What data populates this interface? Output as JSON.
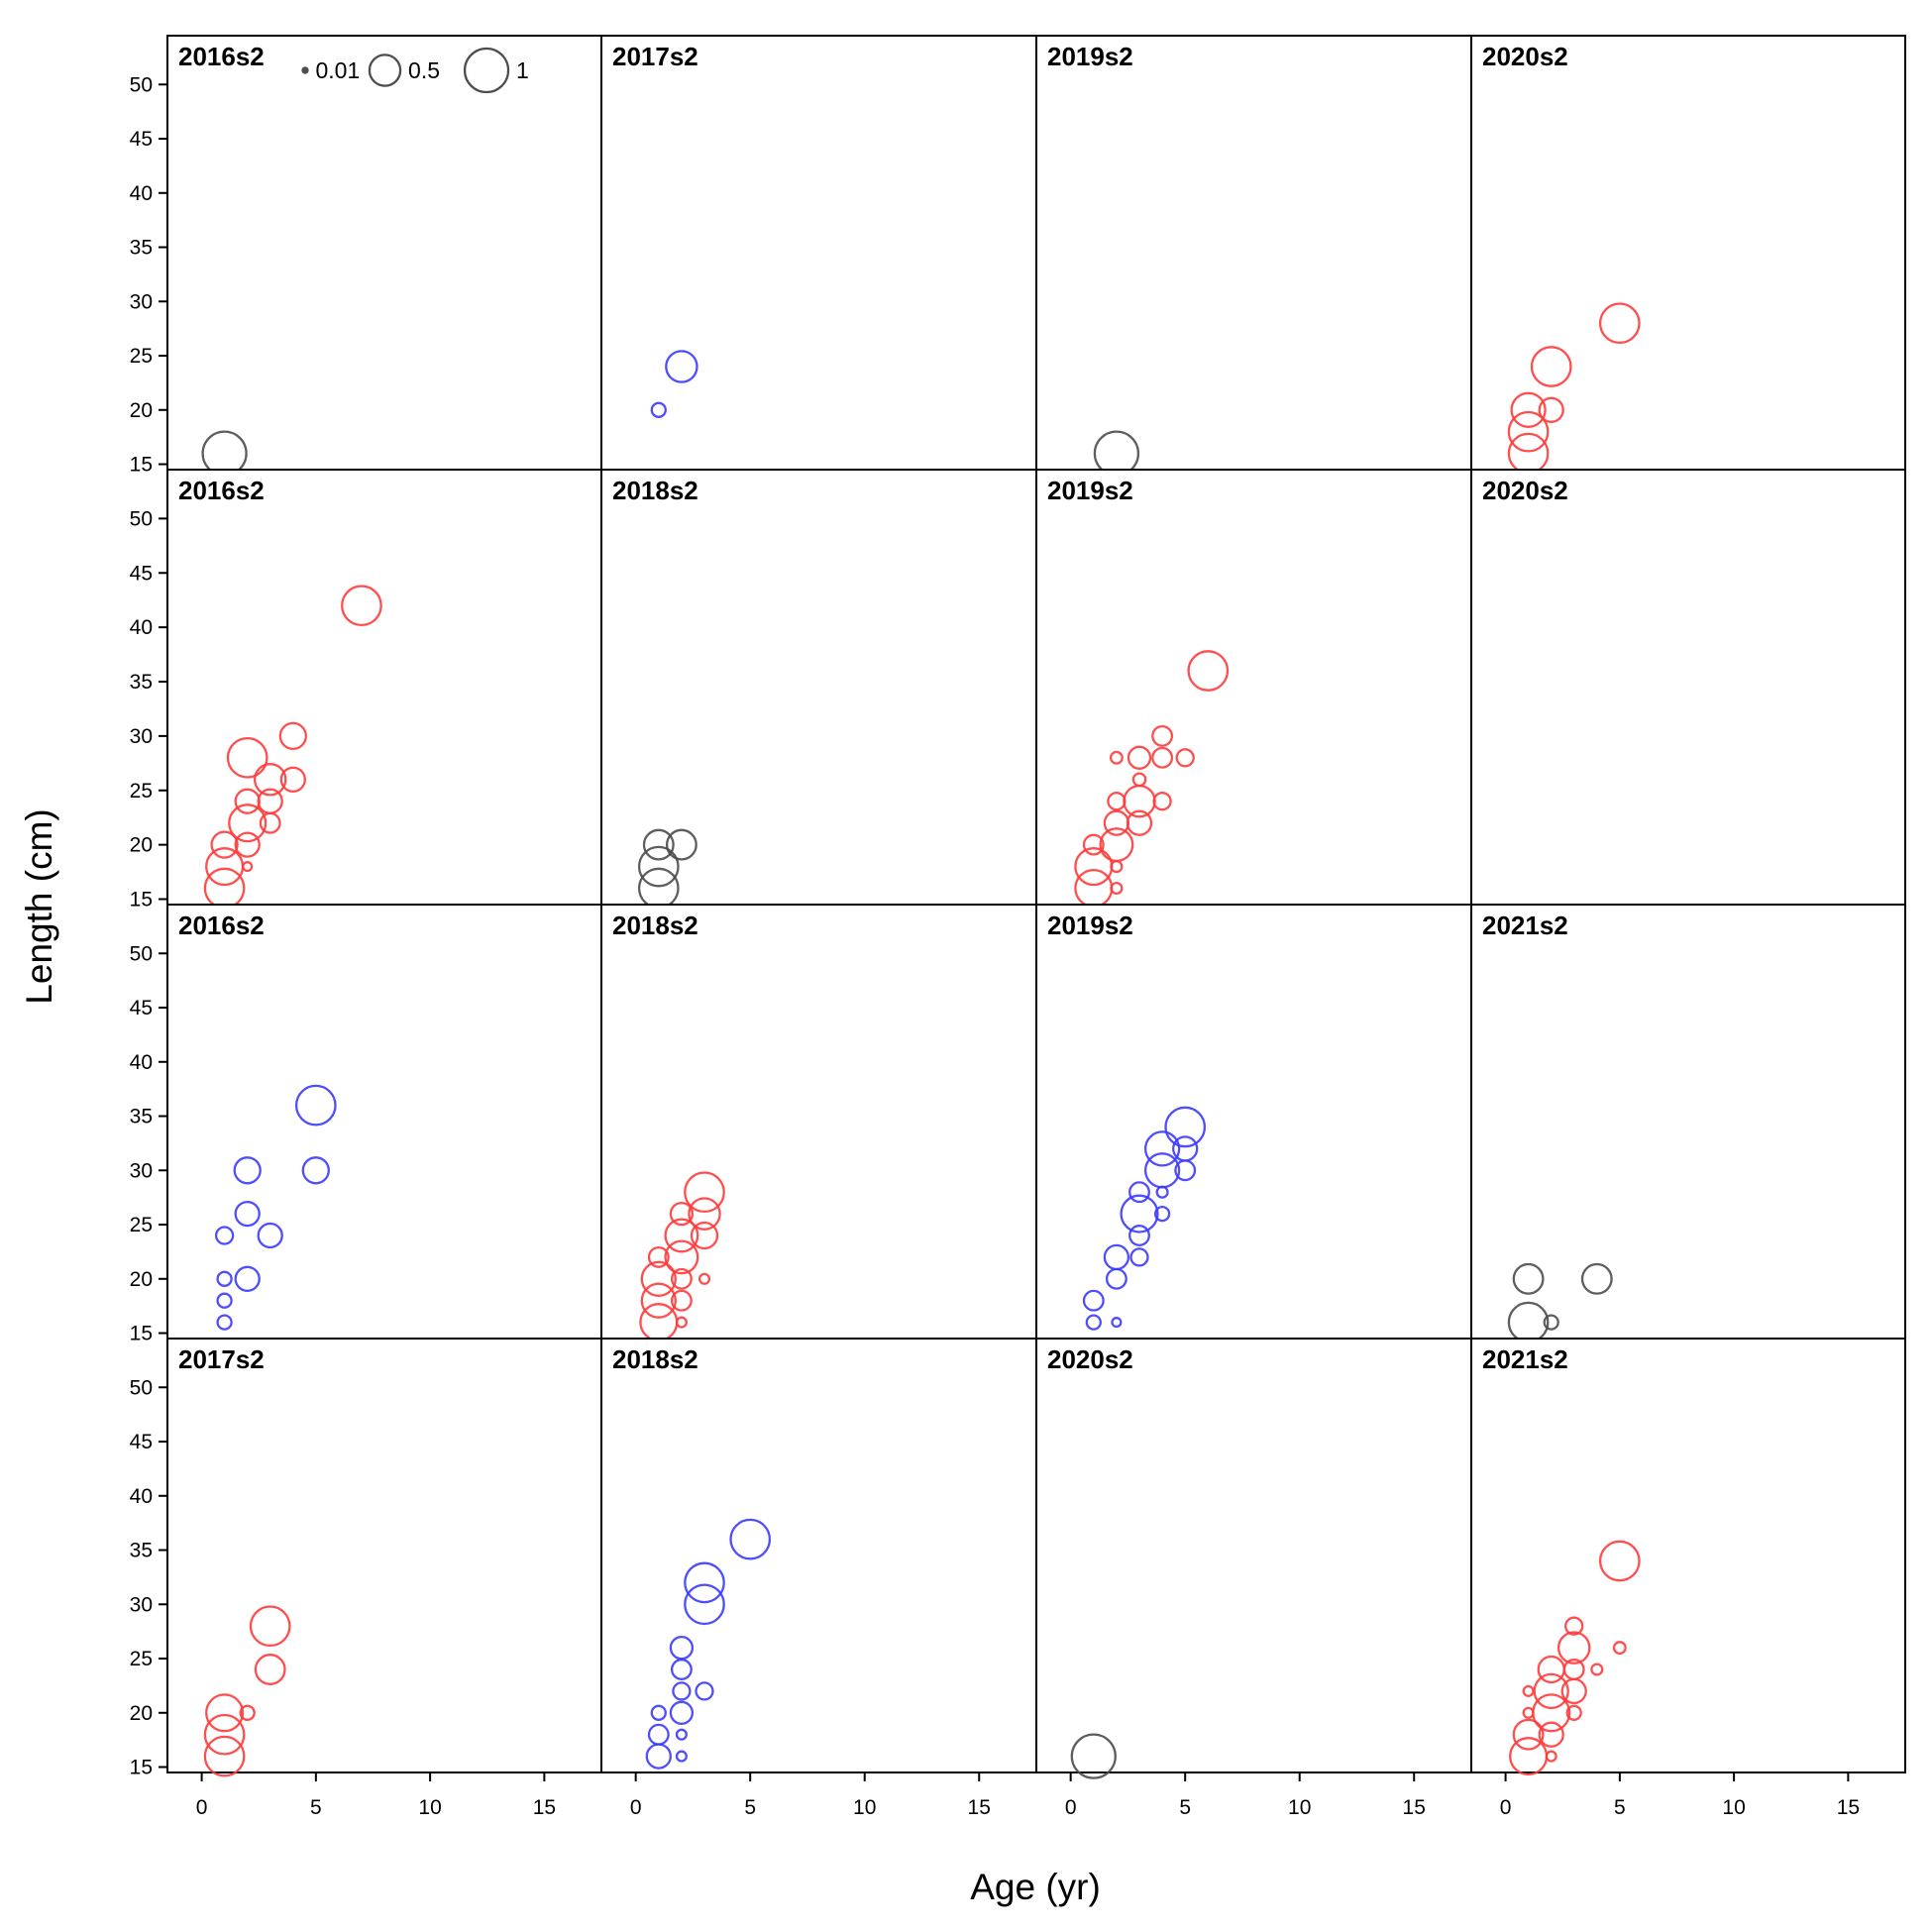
{
  "chart_data": {
    "type": "scatter",
    "subtype": "bubble-grid",
    "xlabel": "Age (yr)",
    "ylabel": "Length (cm)",
    "xlim": [
      -1.5,
      17.5
    ],
    "ylim": [
      14.5,
      54.5
    ],
    "xticks": [
      0,
      5,
      10,
      15
    ],
    "yticks": [
      15,
      20,
      25,
      30,
      35,
      40,
      45,
      50
    ],
    "grid": false,
    "colors": {
      "red": "#ff3b3b",
      "blue": "#3b3bff",
      "gray": "#4d4d4d"
    },
    "legend": {
      "placement": "top of first panel",
      "entries": [
        {
          "label": "0.01",
          "size": 0.01
        },
        {
          "label": "0.5",
          "size": 0.5
        },
        {
          "label": "1",
          "size": 1
        }
      ]
    },
    "panels": [
      {
        "label": "2016s2",
        "points": [
          [
            1,
            16,
            1.0,
            "gray"
          ]
        ]
      },
      {
        "label": "2017s2",
        "points": [
          [
            1,
            20,
            0.1,
            "blue"
          ],
          [
            2,
            24,
            0.5,
            "blue"
          ]
        ]
      },
      {
        "label": "2019s2",
        "points": [
          [
            2,
            16,
            1.0,
            "gray"
          ]
        ]
      },
      {
        "label": "2020s2",
        "points": [
          [
            1,
            16,
            0.8,
            "red"
          ],
          [
            1,
            18,
            0.8,
            "red"
          ],
          [
            1,
            20,
            0.6,
            "red"
          ],
          [
            2,
            20,
            0.3,
            "red"
          ],
          [
            2,
            24,
            0.8,
            "red"
          ],
          [
            5,
            28,
            0.8,
            "red"
          ]
        ]
      },
      {
        "label": "2016s2",
        "points": [
          [
            1,
            16,
            0.8,
            "red"
          ],
          [
            1,
            18,
            0.7,
            "red"
          ],
          [
            1,
            20,
            0.35,
            "red"
          ],
          [
            2,
            18,
            0.04,
            "red"
          ],
          [
            2,
            20,
            0.3,
            "red"
          ],
          [
            2,
            22,
            0.7,
            "red"
          ],
          [
            2,
            24,
            0.3,
            "red"
          ],
          [
            2,
            28,
            0.8,
            "red"
          ],
          [
            3,
            22,
            0.2,
            "red"
          ],
          [
            3,
            24,
            0.3,
            "red"
          ],
          [
            3,
            26,
            0.5,
            "red"
          ],
          [
            4,
            26,
            0.3,
            "red"
          ],
          [
            4,
            30,
            0.35,
            "red"
          ],
          [
            7,
            42,
            0.8,
            "red"
          ]
        ]
      },
      {
        "label": "2018s2",
        "points": [
          [
            1,
            16,
            0.8,
            "gray"
          ],
          [
            1,
            18,
            0.8,
            "gray"
          ],
          [
            1,
            20,
            0.45,
            "gray"
          ],
          [
            2,
            20,
            0.45,
            "gray"
          ]
        ]
      },
      {
        "label": "2019s2",
        "points": [
          [
            1,
            16,
            0.7,
            "red"
          ],
          [
            1,
            18,
            0.7,
            "red"
          ],
          [
            1,
            20,
            0.2,
            "red"
          ],
          [
            2,
            16,
            0.06,
            "red"
          ],
          [
            2,
            18,
            0.06,
            "red"
          ],
          [
            2,
            20,
            0.55,
            "red"
          ],
          [
            2,
            22,
            0.3,
            "red"
          ],
          [
            2,
            24,
            0.15,
            "red"
          ],
          [
            2,
            28,
            0.07,
            "red"
          ],
          [
            3,
            22,
            0.3,
            "red"
          ],
          [
            3,
            24,
            0.5,
            "red"
          ],
          [
            3,
            26,
            0.08,
            "red"
          ],
          [
            3,
            28,
            0.25,
            "red"
          ],
          [
            4,
            24,
            0.15,
            "red"
          ],
          [
            4,
            28,
            0.2,
            "red"
          ],
          [
            4,
            30,
            0.2,
            "red"
          ],
          [
            5,
            28,
            0.15,
            "red"
          ],
          [
            6,
            36,
            0.8,
            "red"
          ]
        ]
      },
      {
        "label": "2020s2",
        "points": []
      },
      {
        "label": "2016s2",
        "points": [
          [
            1,
            16,
            0.1,
            "blue"
          ],
          [
            1,
            18,
            0.1,
            "blue"
          ],
          [
            1,
            20,
            0.1,
            "blue"
          ],
          [
            1,
            24,
            0.15,
            "blue"
          ],
          [
            2,
            20,
            0.3,
            "blue"
          ],
          [
            2,
            26,
            0.3,
            "blue"
          ],
          [
            2,
            30,
            0.35,
            "blue"
          ],
          [
            3,
            24,
            0.3,
            "blue"
          ],
          [
            5,
            30,
            0.35,
            "blue"
          ],
          [
            5,
            36,
            0.8,
            "blue"
          ]
        ]
      },
      {
        "label": "2018s2",
        "points": [
          [
            1,
            16,
            0.7,
            "red"
          ],
          [
            1,
            18,
            0.6,
            "red"
          ],
          [
            1,
            20,
            0.6,
            "red"
          ],
          [
            1,
            22,
            0.2,
            "red"
          ],
          [
            2,
            16,
            0.05,
            "red"
          ],
          [
            2,
            18,
            0.2,
            "red"
          ],
          [
            2,
            20,
            0.2,
            "red"
          ],
          [
            2,
            22,
            0.55,
            "red"
          ],
          [
            2,
            24,
            0.55,
            "red"
          ],
          [
            2,
            26,
            0.25,
            "red"
          ],
          [
            3,
            20,
            0.05,
            "red"
          ],
          [
            3,
            24,
            0.35,
            "red"
          ],
          [
            3,
            26,
            0.5,
            "red"
          ],
          [
            3,
            28,
            0.8,
            "red"
          ]
        ]
      },
      {
        "label": "2019s2",
        "points": [
          [
            1,
            16,
            0.1,
            "blue"
          ],
          [
            1,
            18,
            0.2,
            "blue"
          ],
          [
            2,
            16,
            0.04,
            "blue"
          ],
          [
            2,
            20,
            0.2,
            "blue"
          ],
          [
            2,
            22,
            0.3,
            "blue"
          ],
          [
            3,
            22,
            0.15,
            "blue"
          ],
          [
            3,
            24,
            0.2,
            "blue"
          ],
          [
            3,
            26,
            0.7,
            "blue"
          ],
          [
            3,
            28,
            0.2,
            "blue"
          ],
          [
            4,
            26,
            0.1,
            "blue"
          ],
          [
            4,
            28,
            0.06,
            "blue"
          ],
          [
            4,
            30,
            0.6,
            "blue"
          ],
          [
            4,
            32,
            0.6,
            "blue"
          ],
          [
            5,
            30,
            0.2,
            "blue"
          ],
          [
            5,
            32,
            0.3,
            "blue"
          ],
          [
            5,
            34,
            0.8,
            "blue"
          ]
        ]
      },
      {
        "label": "2021s2",
        "points": [
          [
            1,
            16,
            0.8,
            "gray"
          ],
          [
            1,
            20,
            0.45,
            "gray"
          ],
          [
            2,
            16,
            0.1,
            "gray"
          ],
          [
            4,
            20,
            0.45,
            "gray"
          ]
        ]
      },
      {
        "label": "2017s2",
        "points": [
          [
            1,
            16,
            0.8,
            "red"
          ],
          [
            1,
            18,
            0.8,
            "red"
          ],
          [
            1,
            20,
            0.7,
            "red"
          ],
          [
            2,
            20,
            0.1,
            "red"
          ],
          [
            3,
            24,
            0.45,
            "red"
          ],
          [
            3,
            28,
            0.8,
            "red"
          ]
        ]
      },
      {
        "label": "2018s2",
        "points": [
          [
            1,
            16,
            0.3,
            "blue"
          ],
          [
            1,
            18,
            0.2,
            "blue"
          ],
          [
            1,
            20,
            0.1,
            "blue"
          ],
          [
            2,
            16,
            0.05,
            "blue"
          ],
          [
            2,
            18,
            0.05,
            "blue"
          ],
          [
            2,
            20,
            0.25,
            "blue"
          ],
          [
            2,
            22,
            0.15,
            "blue"
          ],
          [
            2,
            24,
            0.2,
            "blue"
          ],
          [
            2,
            26,
            0.25,
            "blue"
          ],
          [
            3,
            22,
            0.15,
            "blue"
          ],
          [
            3,
            30,
            0.8,
            "blue"
          ],
          [
            3,
            32,
            0.8,
            "blue"
          ],
          [
            5,
            36,
            0.8,
            "blue"
          ]
        ]
      },
      {
        "label": "2020s2",
        "points": [
          [
            1,
            16,
            1.0,
            "gray"
          ]
        ]
      },
      {
        "label": "2021s2",
        "points": [
          [
            1,
            16,
            0.7,
            "red"
          ],
          [
            1,
            18,
            0.45,
            "red"
          ],
          [
            1,
            20,
            0.05,
            "red"
          ],
          [
            1,
            22,
            0.05,
            "red"
          ],
          [
            2,
            16,
            0.05,
            "red"
          ],
          [
            2,
            18,
            0.3,
            "red"
          ],
          [
            2,
            20,
            0.7,
            "red"
          ],
          [
            2,
            22,
            0.6,
            "red"
          ],
          [
            2,
            24,
            0.35,
            "red"
          ],
          [
            3,
            20,
            0.1,
            "red"
          ],
          [
            3,
            22,
            0.3,
            "red"
          ],
          [
            3,
            24,
            0.2,
            "red"
          ],
          [
            3,
            26,
            0.5,
            "red"
          ],
          [
            3,
            28,
            0.15,
            "red"
          ],
          [
            4,
            24,
            0.06,
            "red"
          ],
          [
            5,
            26,
            0.07,
            "red"
          ],
          [
            5,
            34,
            0.8,
            "red"
          ]
        ]
      }
    ]
  }
}
